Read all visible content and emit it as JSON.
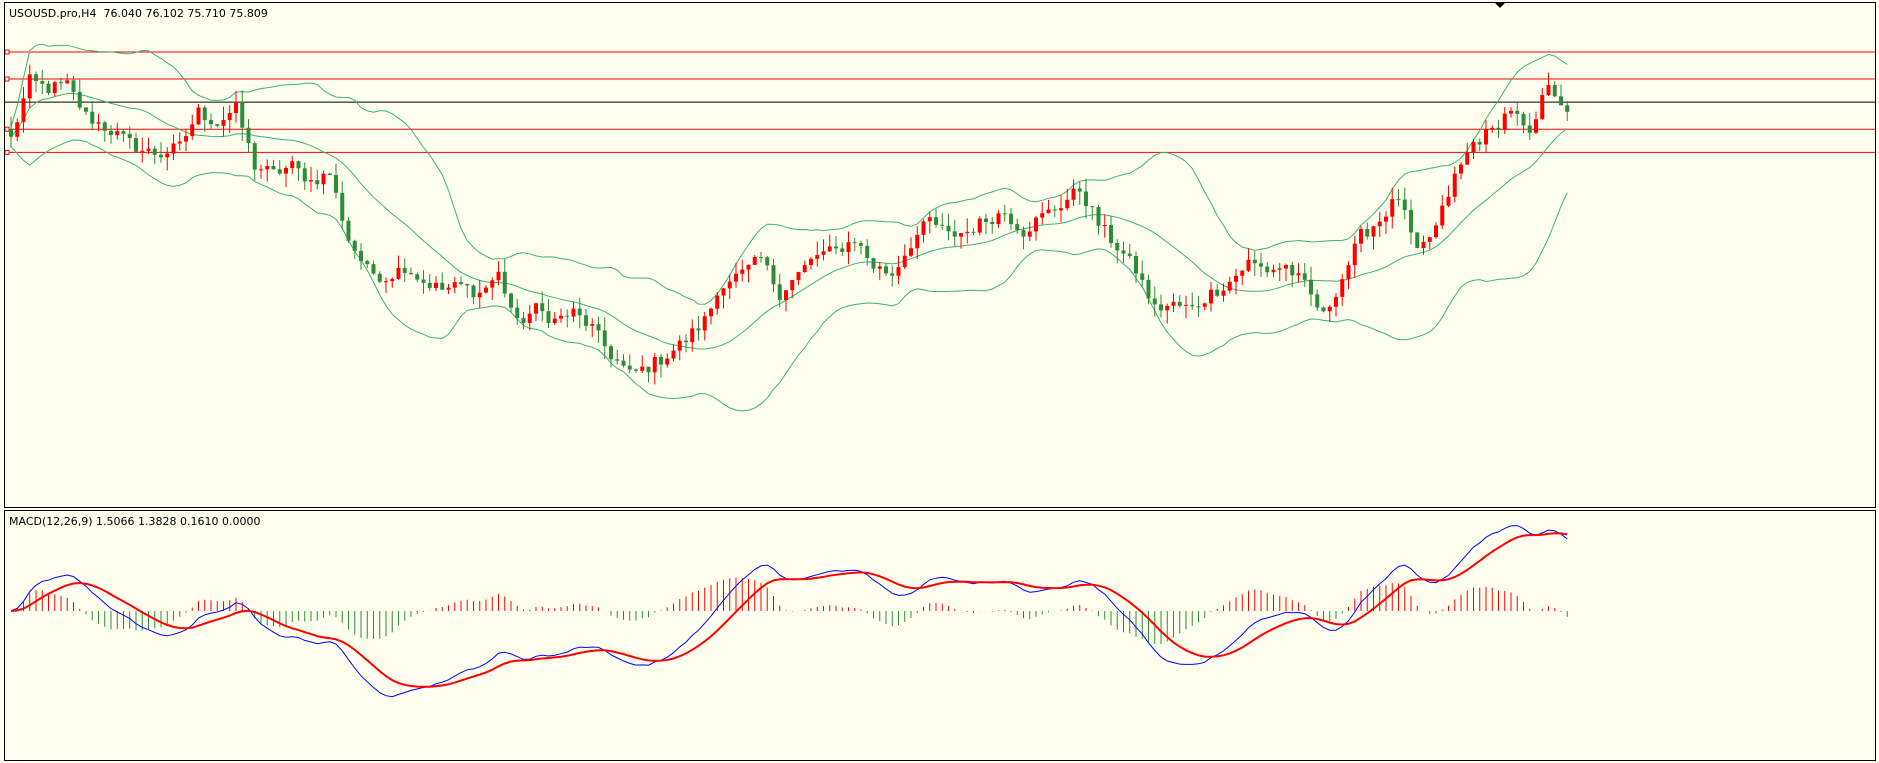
{
  "main": {
    "symbol_label": "USOUSD.pro,H4",
    "ohlc_label": "76.040 76.102 75.710 75.809",
    "colors": {
      "bull": "#ff0000",
      "bear": "#2e8b3a",
      "bands": "#3cb371",
      "level": "#ff0000",
      "bid": "#000000"
    },
    "horizontal_levels": [
      77.55,
      76.85,
      75.55,
      74.95
    ],
    "bid_line": 76.25
  },
  "macd_panel": {
    "label": "MACD(12,26,9) 1.5066 1.3828 0.1610 0.0000",
    "colors": {
      "macd": "#0000ff",
      "signal": "#ff0000",
      "hist_pos": "#ff0000",
      "hist_neg": "#2e8b3a"
    }
  },
  "chart_data": {
    "type": "candlestick",
    "title": "USOUSD.pro,H4",
    "ylim": [
      66.0,
      78.3
    ],
    "indicators": [
      "Bollinger Bands",
      "MACD(12,26,9)"
    ],
    "candles_anchor_close": [
      75.3,
      76.8,
      76.6,
      76.7,
      75.9,
      75.6,
      75.3,
      75.0,
      74.9,
      75.1,
      76.0,
      75.7,
      76.1,
      74.6,
      74.4,
      74.6,
      74.2,
      74.4,
      72.7,
      71.9,
      71.7,
      72.0,
      71.6,
      71.4,
      71.5,
      71.3,
      71.8,
      70.5,
      70.9,
      70.6,
      70.8,
      70.4,
      69.7,
      69.2,
      69.4,
      69.7,
      70.1,
      70.6,
      71.6,
      71.8,
      72.2,
      71.3,
      71.8,
      72.3,
      72.4,
      72.7,
      72.0,
      71.8,
      72.6,
      73.2,
      72.8,
      72.9,
      73.2,
      73.4,
      72.9,
      73.3,
      73.6,
      74.0,
      73.1,
      72.5,
      71.9,
      70.9,
      71.0,
      70.9,
      71.3,
      71.6,
      72.1,
      71.9,
      72.0,
      71.5,
      70.7,
      71.7,
      72.8,
      73.2,
      73.8,
      72.3,
      73.0,
      74.3,
      75.2,
      75.5,
      76.1,
      75.3,
      76.8,
      76.0
    ]
  }
}
